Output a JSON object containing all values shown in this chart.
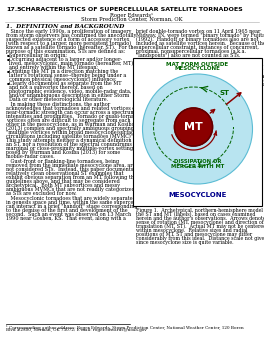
{
  "title_num": "17.5",
  "title_text": "CHARACTERISTICS OF SUPERCELLULAR SATELLITE TORNADOES",
  "author": "Roger Edwards¹",
  "affil": "Storm Prediction Center, Norman, OK",
  "section1_title": "1.  DEFINITION and BACKGROUND",
  "col1_lines": [
    "   Since the early 1990s, a proliferation of imagery",
    "from storm observers has confirmed the anecdotally",
    "suspected existence of a form of accessory vortex",
    "(with respect to a larger, more persistent tornado)",
    "known as a satellite tornado (hereafter, ST).  For the",
    "purpose of this examination, STs are defined as:"
  ],
  "bullets": [
    [
      "Supercellular in origin;",
      []
    ],
    [
      "Occurring adjacent to a larger and/or longer-",
      [
        "lived, mesocyclonic, main tornado (hereafter, MT)",
        "and entirely within the MT lifespan;"
      ]
    ],
    [
      "Orbiting the MT in a direction matching the",
      [
        "latter's rotational sense--thereby being under a",
        "common physical (mesocyclonic) influence;"
      ]
    ],
    [
      "Clearly documented as separate from the MT",
      [
        "and not a subvortex thereof, based on",
        "photographic evidence, video, mobile-radar data,",
        "and/or unambiguous description in either Storm",
        "Data or other meteorological literature."
      ]
    ]
  ],
  "col1_para2": [
    "   In making these distinctions, the author",
    "acknowledges that tornadoes and related vortices of",
    "near-tornadic strength can occur across a spectrum of",
    "intensities and proximities.  Tornado or quasi-tornadic",
    "vortices often are difficult to segregate from each",
    "other in the mesocyclone, as in Wurman and Kosiba's",
    "(2013) complex and spectrally ambiguous grouping",
    "\"multiple vortices within broad mesocyclone/surface",
    "circulations including satellite tornadoes (MVMC)\".",
    "This study attempts neither a dynamical definition for",
    "an ST, nor a resolution of the spectral conundrums for",
    "marginal or close-proximity multiple-vortex settings",
    "posed by Wurman and Kosiba (2013) for some",
    "mobile-radar cases."
  ],
  "col1_para3": [
    "   Gust-front or flanking-line tornadoes, being",
    "removed from the immediate mesocyclone area, are",
    "not considered STs.  Instead, this paper documents",
    "relatively clean observational ST examples that",
    "exhibit obvious separation from an MT, following the",
    "guidelines above, and that may be considered",
    "archetypical.  Both MT subvortices and messy",
    "ambiguous MVMCs that are not readily categorized",
    "as STs are excluded for now."
  ],
  "col1_para4": [
    "   Mesocyclonic tornadoes that are widely separated",
    "in genesis space and time, within the same supercell,",
    "can interact in a brief \"handoff\" stage corresponding",
    "to the demise of the first and development of the",
    "second.  Such an event was observed on 13 March",
    "1990 near Goshen, KS.  That event, along with a"
  ],
  "col2_para1": [
    "brief double-tornado vortex on 11 April 1965 near",
    "Midway, IN, were termed \"binary tornado\" by Fujita",
    "(1992).  Handoff or binary tornadoes also are not",
    "included as satellite vortices herein.  Because of the",
    "supercellular constraint, instances of concurrent,",
    "proximal, nonsupercellular tornadoes (a.k.a.",
    "\"landspouts\") also are not counted as STs."
  ],
  "col2_para2": [
    "   Figure 1 shows a two-dimensional, conceptual,",
    "archetypical model, with the ST under the common",
    "mesocyclonic influence of the MT (regardless of its",
    "origin inside or outside the mesocyclone).",
    "Photographic examples of STs with their MTs appear",
    "in Fig. 2.  In documenting these events, there are no",
    "exclusionary constraints on size, duration, rotational",
    "sense, or the ultimate fate of the ST itself (e.g.,",
    "dissipating in situ or being absorbed by the MT)."
  ],
  "fig_caption": [
    "Figure 1.  Archetypical, northern-hemisphere model of",
    "the ST and MT (labels), based on cases examined",
    "herein and the author's observations.  Arrows denote",
    "sense of rotation (MT, mesocyclone) and direction of",
    "translation (MT, ST).  Actual MT may not be centered",
    "within mesocyclone.  Relative sizes and radial",
    "positions of MT, ST and mesocyclone may differ",
    "considerably from this ideal.  Distance scale not given",
    "since mesocyclone size is quite variable."
  ],
  "footnote1": "¹ Corresponding author address: Roger Edwards, Storm Prediction Center, National Weather Center, 120 Boren",
  "footnote2": "Blvd #2300, Norman, OK 73072; E-mail: roger.edwards@noaa.gov",
  "bg_color": "#ffffff",
  "text_color": "#000000",
  "green_color": "#006400",
  "blue_color": "#00008b",
  "red_color": "#8b0000",
  "meso_fill": "#b8e4f0",
  "meso_edge": "#5bbcd4",
  "mt_fill": "#8b0000",
  "mt_gray": "#c0c0c0"
}
